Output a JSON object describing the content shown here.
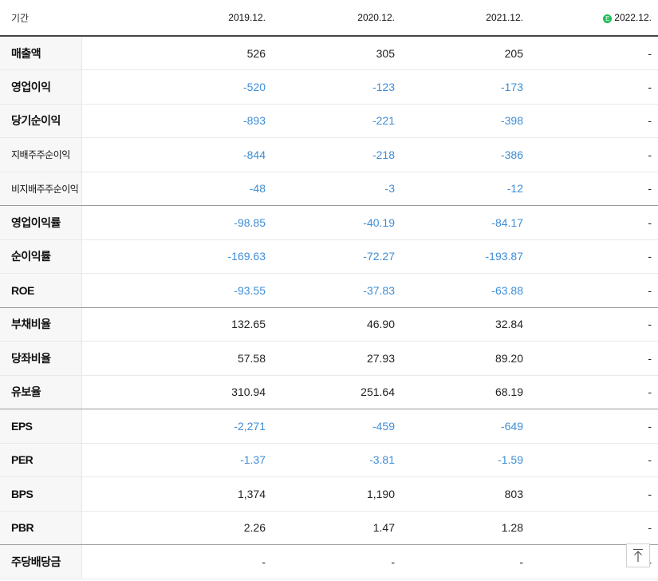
{
  "header": {
    "label": "기간",
    "years": [
      "2019.12.",
      "2020.12.",
      "2021.12.",
      "2022.12."
    ],
    "estimate_mark": "E"
  },
  "rows": [
    {
      "label": "매출액",
      "values": [
        "526",
        "305",
        "205",
        "-"
      ]
    },
    {
      "label": "영업이익",
      "values": [
        "-520",
        "-123",
        "-173",
        "-"
      ]
    },
    {
      "label": "당기순이익",
      "values": [
        "-893",
        "-221",
        "-398",
        "-"
      ]
    },
    {
      "label": "지배주주순이익",
      "values": [
        "-844",
        "-218",
        "-386",
        "-"
      ]
    },
    {
      "label": "비지배주주순이익",
      "values": [
        "-48",
        "-3",
        "-12",
        "-"
      ]
    },
    {
      "label": "영업이익률",
      "values": [
        "-98.85",
        "-40.19",
        "-84.17",
        "-"
      ]
    },
    {
      "label": "순이익률",
      "values": [
        "-169.63",
        "-72.27",
        "-193.87",
        "-"
      ]
    },
    {
      "label": "ROE",
      "values": [
        "-93.55",
        "-37.83",
        "-63.88",
        "-"
      ]
    },
    {
      "label": "부채비율",
      "values": [
        "132.65",
        "46.90",
        "32.84",
        "-"
      ]
    },
    {
      "label": "당좌비율",
      "values": [
        "57.58",
        "27.93",
        "89.20",
        "-"
      ]
    },
    {
      "label": "유보율",
      "values": [
        "310.94",
        "251.64",
        "68.19",
        "-"
      ]
    },
    {
      "label": "EPS",
      "values": [
        "-2,271",
        "-459",
        "-649",
        "-"
      ]
    },
    {
      "label": "PER",
      "values": [
        "-1.37",
        "-3.81",
        "-1.59",
        "-"
      ]
    },
    {
      "label": "BPS",
      "values": [
        "1,374",
        "1,190",
        "803",
        "-"
      ]
    },
    {
      "label": "PBR",
      "values": [
        "2.26",
        "1.47",
        "1.28",
        "-"
      ]
    },
    {
      "label": "주당배당금",
      "values": [
        "-",
        "-",
        "-",
        "-"
      ]
    }
  ],
  "colors": {
    "negative": "#3f8ed6",
    "estimate_badge": "#1fbd5a"
  },
  "scroll_top_icon": "arrow-up-to-line-icon"
}
